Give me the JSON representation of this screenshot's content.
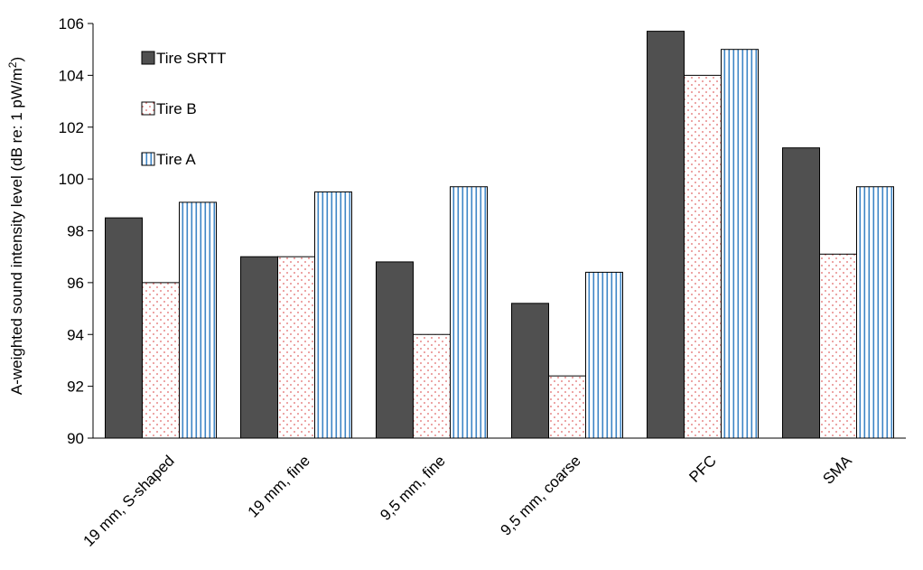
{
  "chart_data": {
    "type": "bar",
    "ylabel": "A-weighted sound intensity level (dB re: 1 pW/m",
    "ylabel_sup": "2",
    "ylabel_end": ")",
    "ylim": [
      90,
      106
    ],
    "yticks": [
      90,
      92,
      94,
      96,
      98,
      100,
      102,
      104,
      106
    ],
    "grid": false,
    "legend_placement": "top-left",
    "categories": [
      "19 mm, S-shaped",
      "19 mm, fine",
      "9,5 mm, fine",
      "9,5 mm, coarse",
      "PFC",
      "SMA"
    ],
    "series": [
      {
        "name": "Tire SRTT",
        "values": [
          98.5,
          97.0,
          96.8,
          95.2,
          105.7,
          101.2
        ],
        "fill": "#505050",
        "pattern": "solid"
      },
      {
        "name": "Tire B",
        "values": [
          96.0,
          97.0,
          94.0,
          92.4,
          104.0,
          97.1
        ],
        "fill": "#e06666",
        "pattern": "dots"
      },
      {
        "name": "Tire A",
        "values": [
          99.1,
          99.5,
          99.7,
          96.4,
          105.0,
          99.7
        ],
        "fill": "#3d85c6",
        "pattern": "vertical-lines"
      }
    ]
  }
}
